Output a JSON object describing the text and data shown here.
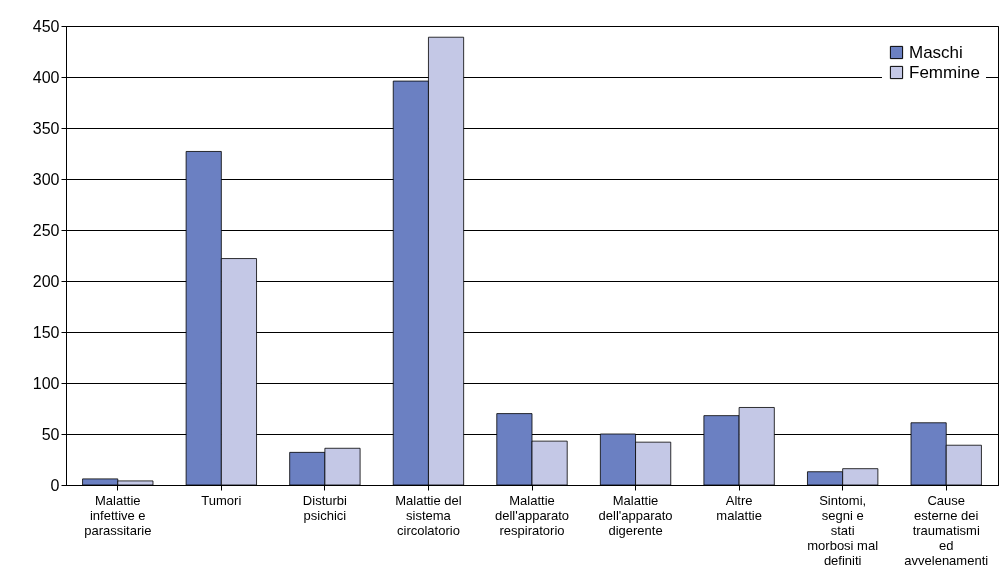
{
  "chart_data": {
    "type": "bar",
    "categories": [
      "Malattie infettive e parassitarie",
      "Tumori",
      "Disturbi psichici",
      "Malattie del sistema circolatorio",
      "Malattie dell'apparato respiratorio",
      "Malattie dell'apparato digerente",
      "Altre malattie",
      "Sintomi, segni e stati morbosi mal definiti",
      "Cause esterne dei traumatismi ed avvelenamenti"
    ],
    "series": [
      {
        "name": "Maschi",
        "color": "#6b80c2",
        "values": [
          6,
          327,
          32,
          396,
          70,
          50,
          68,
          13,
          61
        ]
      },
      {
        "name": "Femmine",
        "color": "#c4c8e6",
        "values": [
          4,
          222,
          36,
          439,
          43,
          42,
          76,
          16,
          39
        ]
      }
    ],
    "ylim": [
      0,
      450
    ],
    "yticks": [
      0,
      50,
      100,
      150,
      200,
      250,
      300,
      350,
      400,
      450
    ],
    "grid": "y",
    "legend": "top right"
  }
}
